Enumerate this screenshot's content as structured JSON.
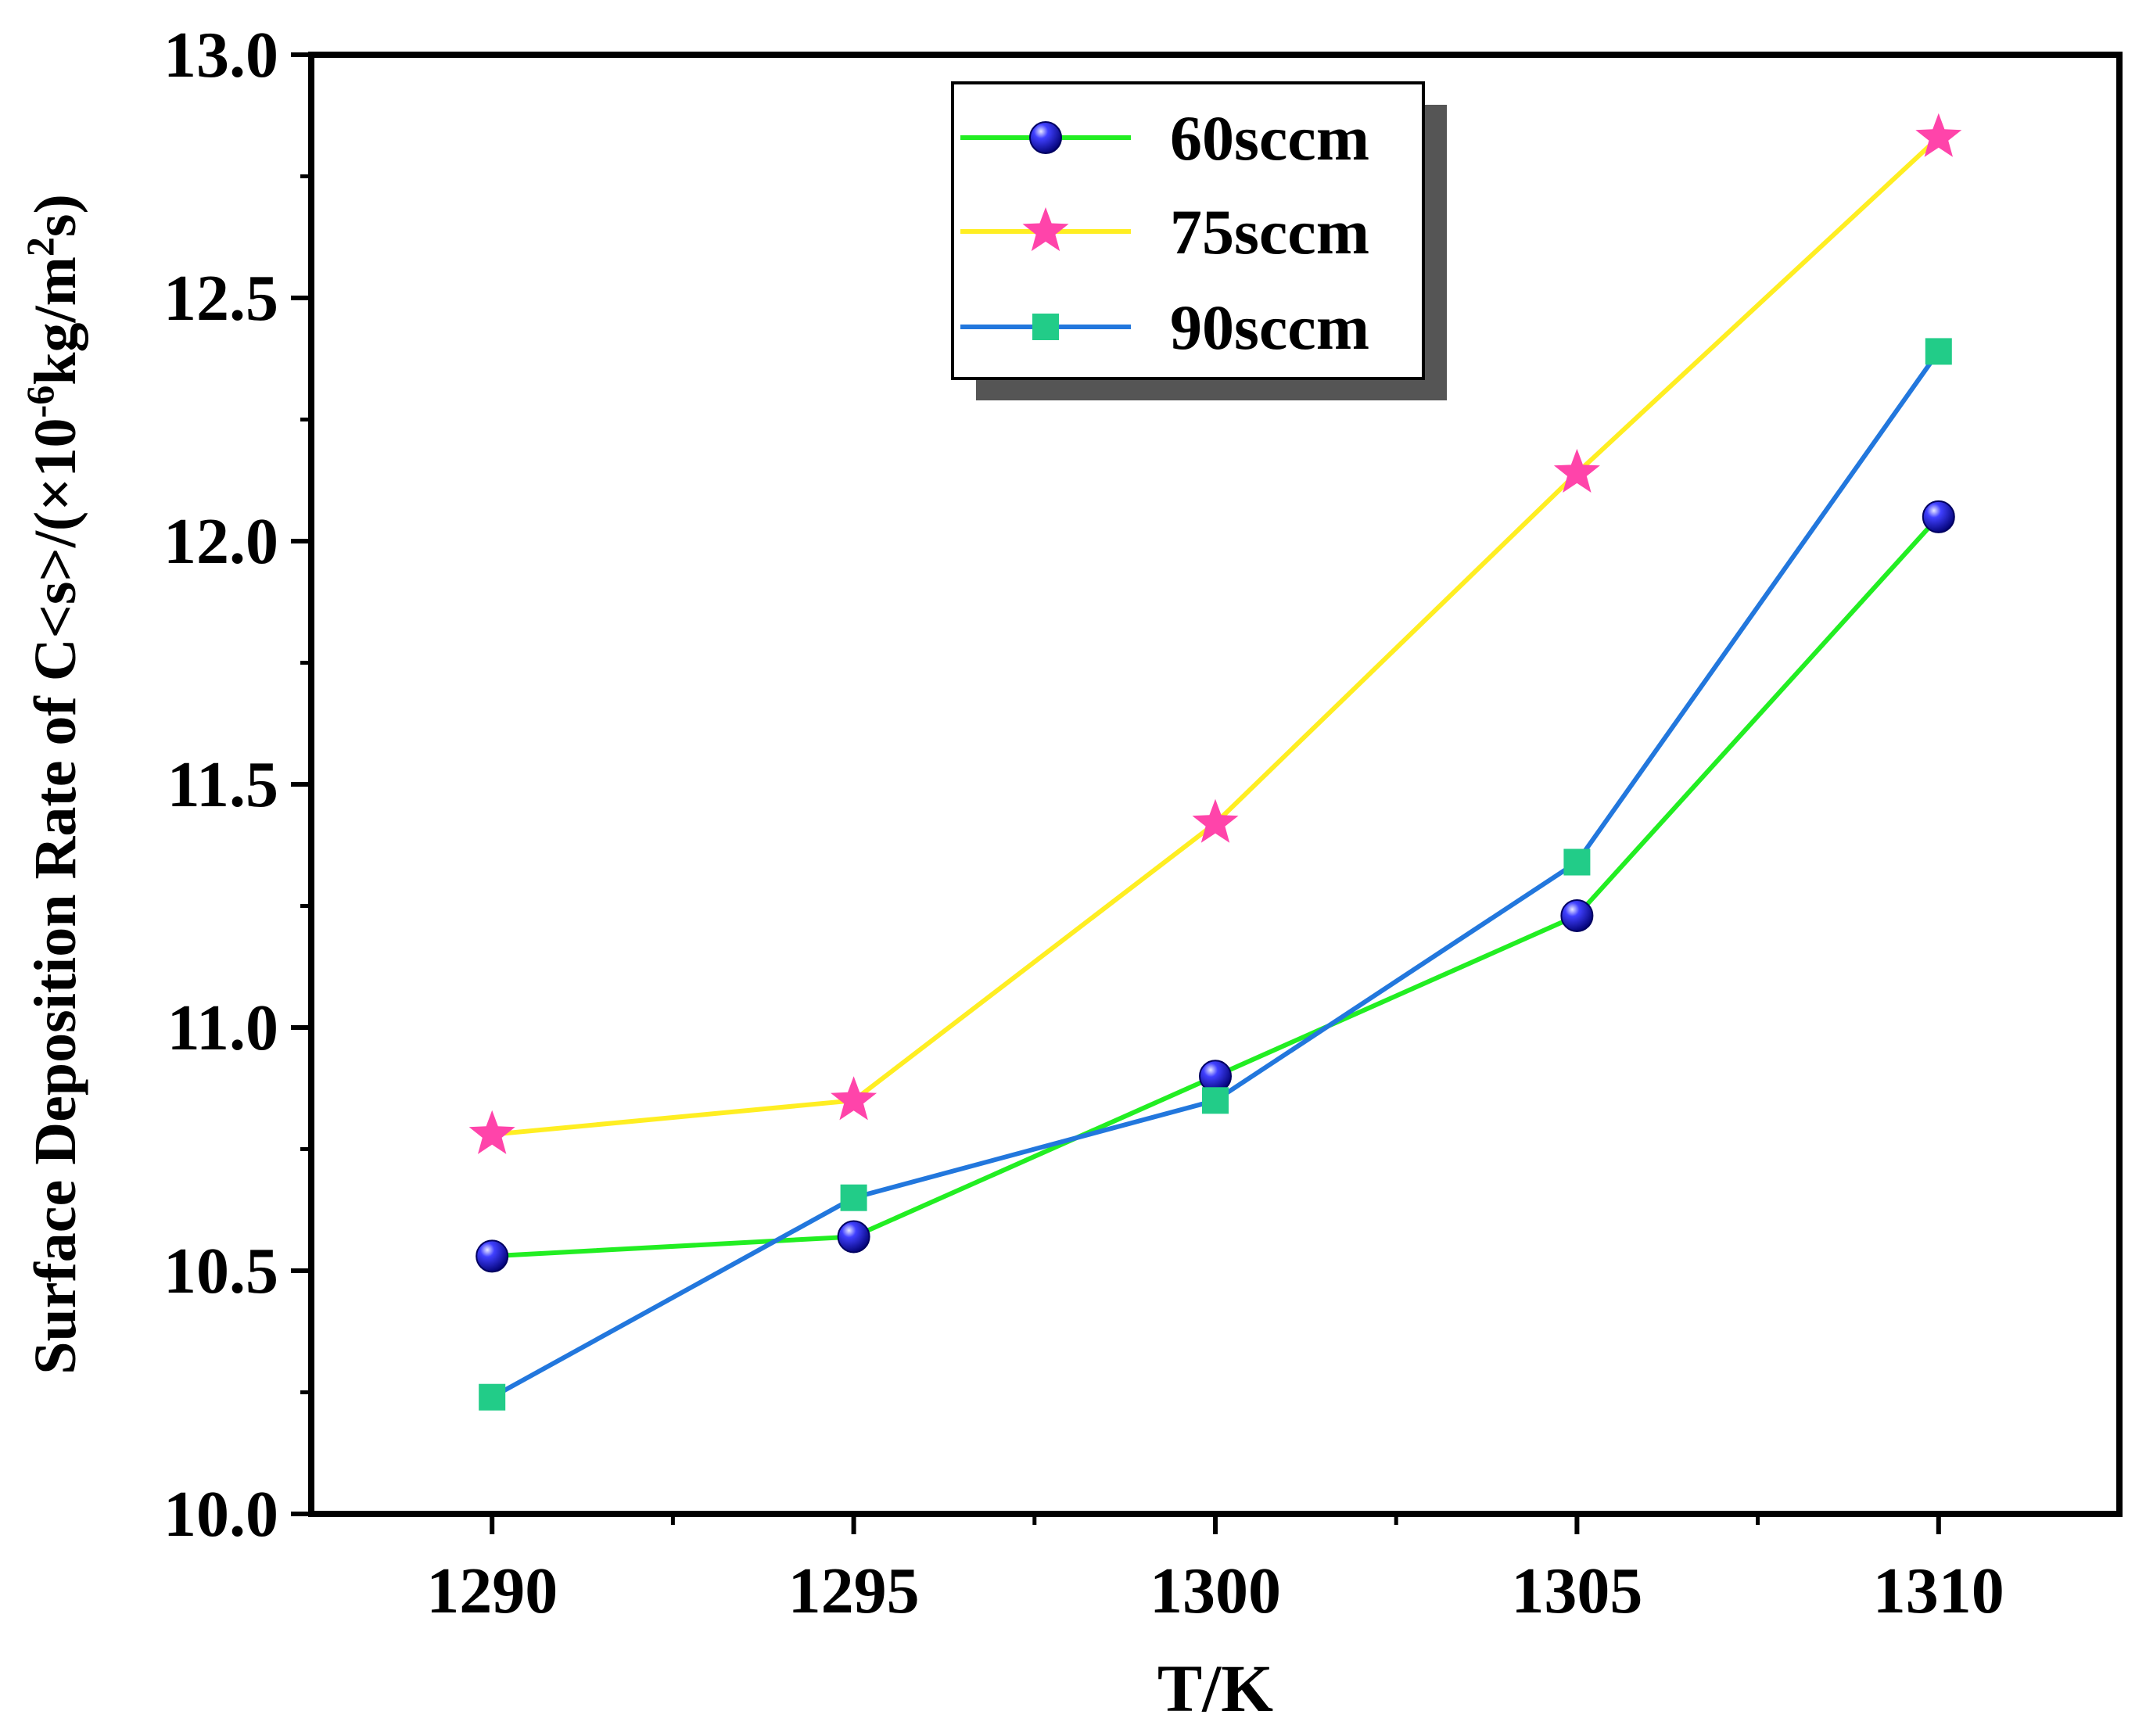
{
  "chart_data": {
    "type": "line",
    "title": "",
    "xlabel": "T/K",
    "ylabel_parts": {
      "base": "Surface Deposition Rate of C<s>/(×10",
      "exp1": "-6",
      "mid": "kg/m",
      "exp2": "2",
      "end": "s)"
    },
    "x": [
      1290,
      1295,
      1300,
      1305,
      1310
    ],
    "xlim": [
      1287.5,
      1312.5
    ],
    "ylim": [
      10.0,
      13.0
    ],
    "xticks": [
      1290,
      1295,
      1300,
      1305,
      1310
    ],
    "xtick_labels": [
      "1290",
      "1295",
      "1300",
      "1305",
      "1310"
    ],
    "yticks": [
      10.0,
      10.5,
      11.0,
      11.5,
      12.0,
      12.5,
      13.0
    ],
    "ytick_labels": [
      "10.0",
      "10.5",
      "11.0",
      "11.5",
      "12.0",
      "12.5",
      "13.0"
    ],
    "grid": false,
    "legend_position": "top-center",
    "series": [
      {
        "name": "60sccm",
        "values": [
          10.53,
          10.57,
          10.9,
          11.23,
          12.05
        ],
        "color": "#22ee22",
        "marker": "sphere",
        "marker_color": "#1010e0"
      },
      {
        "name": "75sccm",
        "values": [
          10.78,
          10.85,
          11.42,
          12.14,
          12.83
        ],
        "color": "#ffee22",
        "marker": "star",
        "marker_color": "#ff44aa"
      },
      {
        "name": "90sccm",
        "values": [
          10.24,
          10.65,
          10.85,
          11.34,
          12.39
        ],
        "color": "#2277dd",
        "marker": "square",
        "marker_color": "#22cc88"
      }
    ]
  }
}
